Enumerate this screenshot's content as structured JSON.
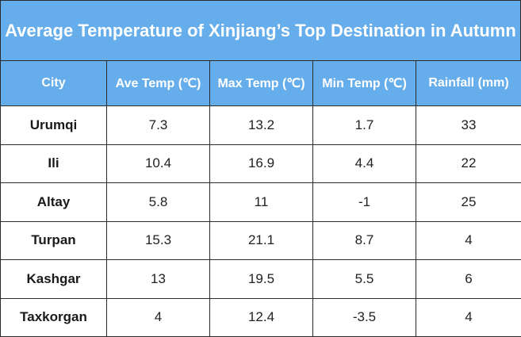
{
  "title": "Average Temperature of Xinjiang’s Top Destination in Autumn",
  "colors": {
    "header_bg": "#66adeb",
    "header_text": "#ffffff",
    "border": "#2b2b2b",
    "body_text": "#222222"
  },
  "chart_data": {
    "type": "table",
    "title": "Average Temperature of Xinjiang’s Top Destination in Autumn",
    "columns": [
      "City",
      "Ave Temp (℃)",
      "Max Temp (℃)",
      "Min Temp (℃)",
      "Rainfall (mm)"
    ],
    "rows": [
      [
        "Urumqi",
        "7.3",
        "13.2",
        "1.7",
        "33"
      ],
      [
        "Ili",
        "10.4",
        "16.9",
        "4.4",
        "22"
      ],
      [
        "Altay",
        "5.8",
        "11",
        "-1",
        "25"
      ],
      [
        "Turpan",
        "15.3",
        "21.1",
        "8.7",
        "4"
      ],
      [
        "Kashgar",
        "13",
        "19.5",
        "5.5",
        "6"
      ],
      [
        "Taxkorgan",
        "4",
        "12.4",
        "-3.5",
        "4"
      ]
    ]
  }
}
